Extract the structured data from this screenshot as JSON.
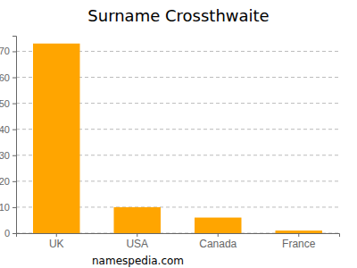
{
  "chart_data": {
    "type": "bar",
    "title": "Surname Crossthwaite",
    "categories": [
      "UK",
      "USA",
      "Canada",
      "France"
    ],
    "values": [
      73,
      10,
      6,
      1
    ],
    "color": "#ffa500",
    "ylim": [
      0,
      76
    ],
    "yticks": [
      0,
      10,
      20,
      30,
      40,
      50,
      60,
      70
    ],
    "grid": true,
    "annotations": [
      "namespedia.com"
    ]
  }
}
